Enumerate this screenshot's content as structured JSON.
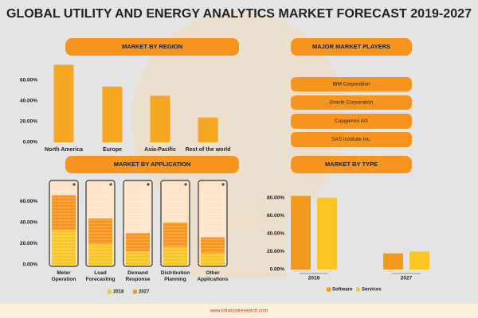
{
  "title": "GLOBAL UTILITY AND ENERGY ANALYTICS MARKET FORECAST 2019-2027",
  "players": {
    "title": "MAJOR MARKET PLAYERS",
    "items": [
      "IBM Corporation",
      "Oracle Corporation",
      "Capgemini AG",
      "SAS Institute Inc."
    ]
  },
  "footer": "www.inkwoodresearch.com",
  "chart_data": [
    {
      "type": "bar",
      "title": "MARKET BY REGION",
      "categories": [
        "North America",
        "Europe",
        "Asia-Pacific",
        "Rest of the world"
      ],
      "values": [
        75,
        54,
        45,
        24
      ],
      "color": "#f5a623",
      "ylim": [
        0,
        80
      ],
      "yticks": [
        {
          "value": 0,
          "label": "0.00%"
        },
        {
          "value": 20,
          "label": "20.00%"
        },
        {
          "value": 40,
          "label": "40.00%"
        },
        {
          "value": 60,
          "label": "60.00%"
        }
      ]
    },
    {
      "type": "battery",
      "title": "MARKET BY APPLICATION",
      "categories": [
        "Meter Operation",
        "Load Forecasting",
        "Demand Response",
        "Distribution Planning",
        "Other Applications"
      ],
      "series": [
        {
          "name": "2018",
          "color": "#f9c623",
          "values": [
            33,
            20,
            13,
            17,
            11
          ]
        },
        {
          "name": "2027",
          "color": "#f7941d",
          "values": [
            66,
            44,
            30,
            40,
            26
          ]
        }
      ],
      "ylim": [
        0,
        80
      ],
      "yticks": [
        {
          "value": 0,
          "label": "0.00%"
        },
        {
          "value": 20,
          "label": "20.00%"
        },
        {
          "value": 40,
          "label": "40.00%"
        },
        {
          "value": 60,
          "label": "60.00%"
        }
      ]
    },
    {
      "type": "bar",
      "title": "MARKET BY TYPE",
      "categories": [
        "2018",
        "2027"
      ],
      "series": [
        {
          "name": "Software",
          "color": "#f39a1e",
          "values": [
            82,
            18
          ]
        },
        {
          "name": "Services",
          "color": "#f9c623",
          "values": [
            80,
            20
          ]
        }
      ],
      "ylim": [
        0,
        85
      ],
      "yticks": [
        {
          "value": 0,
          "label": "0.00%"
        },
        {
          "value": 20,
          "label": "20.00%"
        },
        {
          "value": 40,
          "label": "40.00%"
        },
        {
          "value": 60,
          "label": "60.00%"
        },
        {
          "value": 80,
          "label": "80.00%"
        }
      ]
    }
  ]
}
